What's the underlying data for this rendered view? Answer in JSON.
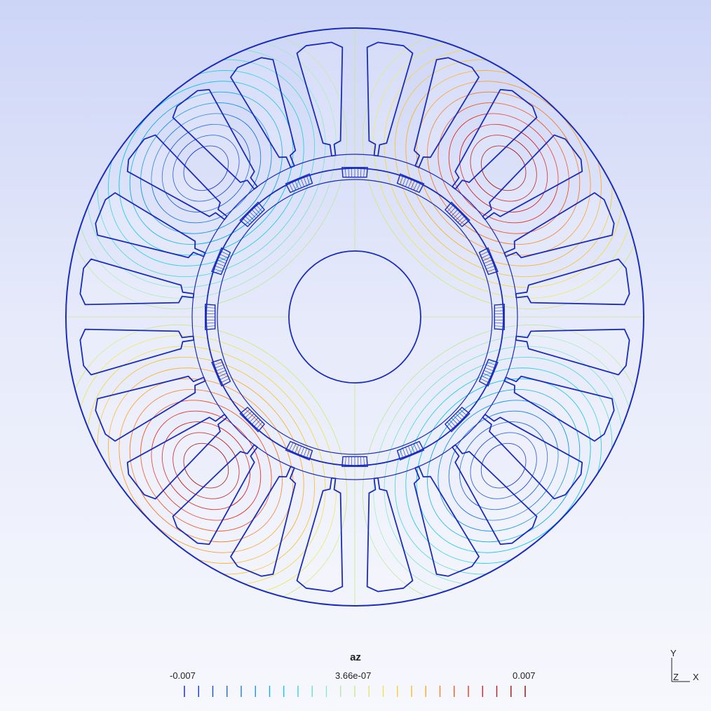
{
  "field": {
    "name": "az",
    "min_label": "-0.007",
    "mid_label": "3.66e-07",
    "max_label": "0.007",
    "min": -0.007,
    "max": 0.007,
    "levels": 25
  },
  "axes": {
    "y": "Y",
    "z": "Z",
    "x": "X"
  },
  "colors": {
    "background_top": "#cdd5f7",
    "background_bottom": "#f7f8fd",
    "geometry": "#1a2cc0",
    "colormap": [
      "#0a1ed2",
      "#1e6ee6",
      "#00c8ee",
      "#a0e8c8",
      "#f0e84a",
      "#ffa020",
      "#e62020",
      "#8a0a0a"
    ]
  },
  "geometry": {
    "stator_slots": 24,
    "rotor_magnets": 16,
    "poles": 4
  }
}
